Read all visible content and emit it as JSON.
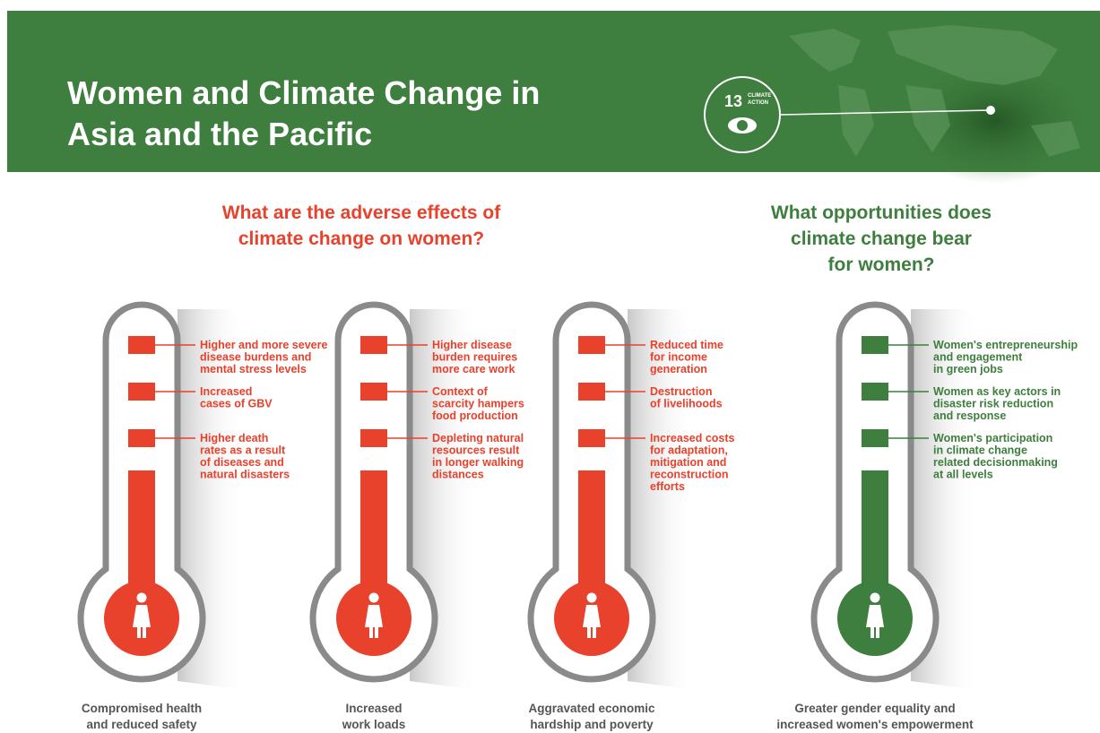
{
  "header": {
    "title": [
      "Women and Climate Change in",
      "Asia and the Pacific"
    ]
  },
  "badge": {
    "number": "13",
    "label": [
      "CLIMATE",
      "ACTION"
    ]
  },
  "sections": [
    {
      "heading": [
        "What are the adverse effects of",
        "climate change on women?"
      ],
      "color": "#e8412c"
    },
    {
      "heading": [
        "What opportunities does",
        "climate change bear",
        "for women?"
      ],
      "color": "#3e7e3e"
    }
  ],
  "thermometers": [
    {
      "color": "#e8412c",
      "items": [
        [
          "Higher and more severe",
          "disease burdens and",
          "mental stress levels"
        ],
        [
          "Increased",
          "cases of GBV"
        ],
        [
          "Higher death",
          "rates as a result",
          "of diseases and",
          "natural disasters"
        ]
      ],
      "caption": [
        "Compromised health",
        "and reduced safety"
      ]
    },
    {
      "color": "#e8412c",
      "items": [
        [
          "Higher disease",
          "burden requires",
          "more care work"
        ],
        [
          "Context of",
          "scarcity hampers",
          "food production"
        ],
        [
          "Depleting natural",
          "resources result",
          "in longer walking",
          "distances"
        ]
      ],
      "caption": [
        "Increased",
        "work loads"
      ]
    },
    {
      "color": "#e8412c",
      "items": [
        [
          "Reduced time",
          "for income",
          "generation"
        ],
        [
          "Destruction",
          "of livelihoods"
        ],
        [
          "Increased costs",
          "for adaptation,",
          "mitigation and",
          "reconstruction",
          "efforts"
        ]
      ],
      "caption": [
        "Aggravated economic",
        "hardship and poverty"
      ]
    },
    {
      "color": "#3e7e3e",
      "items": [
        [
          "Women's entrepreneurship",
          "and engagement",
          "in green jobs"
        ],
        [
          "Women as key actors in",
          "disaster risk reduction",
          "and response"
        ],
        [
          "Women's participation",
          "in climate change",
          "related decisionmaking",
          "at all levels"
        ]
      ],
      "caption": [
        "Greater gender equality and",
        "increased women's empowerment"
      ]
    }
  ]
}
